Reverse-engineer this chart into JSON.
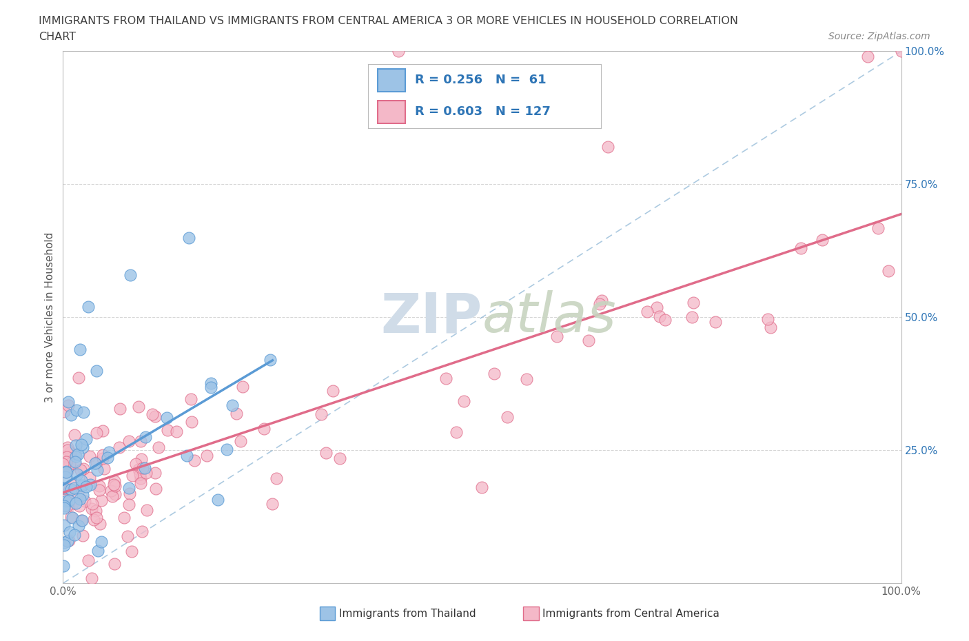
{
  "title_line1": "IMMIGRANTS FROM THAILAND VS IMMIGRANTS FROM CENTRAL AMERICA 3 OR MORE VEHICLES IN HOUSEHOLD CORRELATION",
  "title_line2": "CHART",
  "source_text": "Source: ZipAtlas.com",
  "ylabel": "3 or more Vehicles in Household",
  "xmin": 0.0,
  "xmax": 1.0,
  "ymin": 0.0,
  "ymax": 1.0,
  "xtick_labels": [
    "0.0%",
    "100.0%"
  ],
  "ytick_labels": [
    "25.0%",
    "50.0%",
    "75.0%",
    "100.0%"
  ],
  "ytick_values": [
    0.25,
    0.5,
    0.75,
    1.0
  ],
  "thailand_color": "#5b9bd5",
  "thailand_face": "#9dc3e6",
  "central_america_color": "#e06c8a",
  "central_america_face": "#f4b8c8",
  "thailand_R": 0.256,
  "thailand_N": 61,
  "central_america_R": 0.603,
  "central_america_N": 127,
  "legend_text_color": "#2e75b6",
  "watermark_color": "#d0dce8",
  "grid_color": "#cccccc",
  "ref_line_color": "#8ab4d4",
  "title_color": "#404040",
  "source_color": "#888888",
  "ytick_color": "#2e75b6",
  "xtick_color": "#666666"
}
